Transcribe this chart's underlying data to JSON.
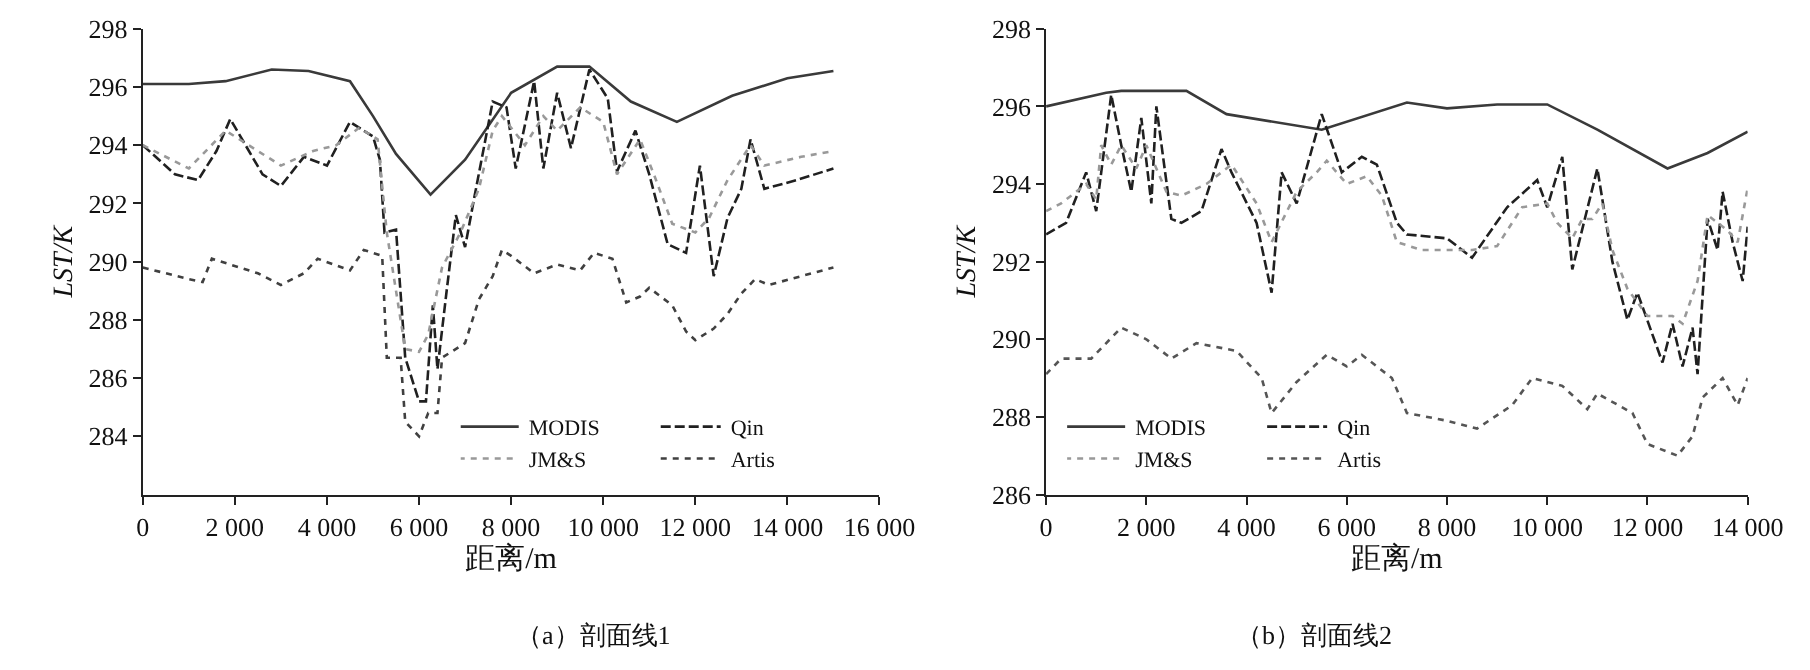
{
  "chart_data": [
    {
      "type": "line",
      "xlabel": "距离/m",
      "ylabel": "LST/K",
      "xlim": [
        0,
        16000
      ],
      "ylim": [
        282,
        298
      ],
      "xticks": [
        0,
        {
          "value": 2000,
          "label": "2 000"
        },
        {
          "value": 4000,
          "label": "4 000"
        },
        {
          "value": 6000,
          "label": "6 000"
        },
        {
          "value": 8000,
          "label": "8 000"
        },
        {
          "value": 10000,
          "label": "10 000"
        },
        {
          "value": 12000,
          "label": "12 000"
        },
        {
          "value": 14000,
          "label": "14 000"
        },
        {
          "value": 16000,
          "label": "16 000"
        }
      ],
      "yticks": [
        284,
        286,
        288,
        290,
        292,
        294,
        296,
        298
      ],
      "legend": "bottom right",
      "annotations": [
        "（a）剖面线1"
      ],
      "series": [
        {
          "name": "MODIS",
          "color": "#3a3a3a",
          "line_style": "solid",
          "x": [
            0,
            1000,
            1800,
            2800,
            3600,
            4500,
            5000,
            5500,
            6250,
            7000,
            8000,
            9000,
            9700,
            10600,
            11600,
            12800,
            14000,
            15000
          ],
          "values": [
            296.1,
            296.1,
            296.2,
            296.6,
            296.55,
            296.2,
            295,
            293.7,
            292.3,
            293.5,
            295.8,
            296.7,
            296.7,
            295.5,
            294.8,
            295.7,
            296.3,
            296.55
          ]
        },
        {
          "name": "Qin",
          "color": "#202020",
          "line_style": "dashed",
          "x": [
            0,
            700,
            1200,
            1600,
            1900,
            2600,
            3000,
            3500,
            4000,
            4500,
            5000,
            5150,
            5250,
            5500,
            5700,
            6000,
            6150,
            6300,
            6400,
            6600,
            6800,
            7000,
            7200,
            7600,
            7900,
            8100,
            8500,
            8700,
            9000,
            9300,
            9700,
            10100,
            10300,
            10700,
            11000,
            11400,
            11800,
            12100,
            12400,
            12700,
            13000,
            13200,
            13500,
            14200,
            15000
          ],
          "values": [
            294,
            293,
            292.8,
            293.8,
            294.9,
            293,
            292.6,
            293.6,
            293.3,
            294.8,
            294.3,
            293.5,
            291,
            291.1,
            286.7,
            285.2,
            285.2,
            288.5,
            286.3,
            289,
            291.6,
            290.5,
            292.2,
            295.5,
            295.3,
            293.2,
            296.2,
            293.2,
            295.8,
            293.9,
            296.6,
            295.6,
            293.1,
            294.5,
            293,
            290.6,
            290.3,
            293.3,
            289.5,
            291.5,
            292.5,
            294.2,
            292.5,
            292.8,
            293.2
          ]
        },
        {
          "name": "JM&S",
          "color": "#999999",
          "line_style": "dotted",
          "x": [
            0,
            1000,
            1800,
            3000,
            3700,
            4200,
            4700,
            5100,
            5300,
            5700,
            6000,
            6200,
            6500,
            6900,
            7300,
            7600,
            7800,
            8300,
            8700,
            9000,
            9500,
            10000,
            10300,
            10800,
            11100,
            11500,
            12000,
            12300,
            12700,
            13200,
            13500,
            14300,
            15000
          ],
          "values": [
            294,
            293.2,
            294.5,
            293.3,
            293.8,
            294,
            294.6,
            294.2,
            291,
            287,
            286.9,
            287.5,
            289.8,
            291,
            292.5,
            294.5,
            295,
            294,
            295,
            294.5,
            295.3,
            294.8,
            293,
            294.2,
            293,
            291.3,
            291,
            291.5,
            292.8,
            294,
            293.3,
            293.6,
            293.8
          ]
        },
        {
          "name": "Artis",
          "color": "#404040",
          "line_style": "dotted",
          "x": [
            0,
            1000,
            1300,
            1500,
            2500,
            3000,
            3500,
            3800,
            4500,
            4800,
            5200,
            5300,
            5600,
            5700,
            6000,
            6200,
            6400,
            6500,
            7000,
            7300,
            7600,
            7800,
            8000,
            8500,
            9000,
            9500,
            9800,
            10200,
            10500,
            10800,
            11000,
            11500,
            11800,
            12000,
            12400,
            12700,
            13000,
            13300,
            13600,
            14300,
            15000
          ],
          "values": [
            289.8,
            289.4,
            289.3,
            290.1,
            289.6,
            289.2,
            289.6,
            290.1,
            289.7,
            290.4,
            290.2,
            286.7,
            286.7,
            284.5,
            284,
            284.8,
            284.8,
            286.7,
            287.2,
            288.7,
            289.5,
            290.4,
            290.2,
            289.6,
            289.9,
            289.7,
            290.3,
            290.1,
            288.6,
            288.8,
            289.1,
            288.5,
            287.6,
            287.3,
            287.7,
            288.2,
            288.9,
            289.4,
            289.2,
            289.5,
            289.8
          ]
        }
      ]
    },
    {
      "type": "line",
      "xlabel": "距离/m",
      "ylabel": "LST/K",
      "xlim": [
        0,
        14000
      ],
      "ylim": [
        286,
        298
      ],
      "xticks": [
        0,
        {
          "value": 2000,
          "label": "2 000"
        },
        {
          "value": 4000,
          "label": "4 000"
        },
        {
          "value": 6000,
          "label": "6 000"
        },
        {
          "value": 8000,
          "label": "8 000"
        },
        {
          "value": 10000,
          "label": "10 000"
        },
        {
          "value": 12000,
          "label": "12 000"
        },
        {
          "value": 14000,
          "label": "14 000"
        }
      ],
      "yticks": [
        286,
        288,
        290,
        292,
        294,
        296,
        298
      ],
      "legend": "bottom left",
      "annotations": [
        "（b）剖面线2"
      ],
      "series": [
        {
          "name": "MODIS",
          "color": "#3a3a3a",
          "line_style": "solid",
          "x": [
            0,
            1200,
            1500,
            2800,
            3600,
            5500,
            7200,
            8000,
            9000,
            10000,
            11000,
            12400,
            13200,
            14000
          ],
          "values": [
            296,
            296.35,
            296.4,
            296.4,
            295.8,
            295.4,
            296.1,
            295.95,
            296.05,
            296.05,
            295.4,
            294.4,
            294.8,
            295.35
          ]
        },
        {
          "name": "Qin",
          "color": "#202020",
          "line_style": "dashed",
          "x": [
            0,
            400,
            800,
            1000,
            1300,
            1500,
            1700,
            1900,
            2100,
            2200,
            2500,
            2700,
            3100,
            3500,
            3700,
            4200,
            4500,
            4700,
            5000,
            5500,
            5900,
            6300,
            6600,
            7000,
            7200,
            8000,
            8500,
            9200,
            9800,
            10000,
            10300,
            10500,
            11000,
            11300,
            11600,
            11800,
            12300,
            12500,
            12700,
            12900,
            13000,
            13200,
            13400,
            13500,
            13700,
            13900,
            14000
          ],
          "values": [
            292.7,
            293,
            294.3,
            293.3,
            296.3,
            295,
            293.8,
            295.7,
            293.5,
            296,
            293.1,
            293,
            293.3,
            294.9,
            294.3,
            293,
            291.2,
            294.3,
            293.5,
            295.8,
            294.3,
            294.7,
            294.5,
            293,
            292.7,
            292.6,
            292.1,
            293.4,
            294.1,
            293.4,
            294.7,
            291.8,
            294.4,
            292,
            290.5,
            291.2,
            289.4,
            290.4,
            289.3,
            290.3,
            289.1,
            293.1,
            292.3,
            293.8,
            292.5,
            291.5,
            292.9
          ]
        },
        {
          "name": "JM&S",
          "color": "#999999",
          "line_style": "dotted",
          "x": [
            0,
            300,
            800,
            1000,
            1100,
            1300,
            1500,
            1800,
            2000,
            2400,
            2700,
            3200,
            3500,
            3700,
            4200,
            4500,
            5000,
            5400,
            5600,
            6000,
            6400,
            6700,
            7000,
            7500,
            8500,
            9000,
            9500,
            10000,
            10200,
            10500,
            10700,
            10900,
            11100,
            11300,
            11600,
            12000,
            12500,
            12700,
            13000,
            13200,
            13600,
            13800,
            14000
          ],
          "values": [
            293.3,
            293.5,
            294,
            293.6,
            295,
            294.5,
            295,
            294.4,
            295,
            293.8,
            293.7,
            294,
            294.3,
            294.5,
            293.5,
            292.5,
            293.8,
            294.3,
            294.6,
            294,
            294.2,
            293.7,
            292.5,
            292.3,
            292.3,
            292.4,
            293.4,
            293.5,
            293,
            292.6,
            293.1,
            293.1,
            293.5,
            292.3,
            291.3,
            290.6,
            290.6,
            290.4,
            291.5,
            293.2,
            292.8,
            292.5,
            293.9
          ]
        },
        {
          "name": "Artis",
          "color": "#555555",
          "line_style": "dotted",
          "x": [
            0,
            300,
            900,
            1500,
            2000,
            2500,
            3000,
            3800,
            4300,
            4500,
            5000,
            5600,
            6000,
            6300,
            6900,
            7200,
            8000,
            8600,
            9300,
            9700,
            10300,
            10800,
            11000,
            11700,
            12000,
            12600,
            12900,
            13100,
            13500,
            13800,
            14000
          ],
          "values": [
            289.1,
            289.5,
            289.5,
            290.3,
            290,
            289.5,
            289.9,
            289.7,
            289,
            288.1,
            288.9,
            289.6,
            289.3,
            289.6,
            289,
            288.1,
            287.9,
            287.7,
            288.3,
            289,
            288.8,
            288.2,
            288.6,
            288.1,
            287.3,
            287,
            287.5,
            288.5,
            289,
            288.3,
            289
          ]
        }
      ]
    }
  ]
}
